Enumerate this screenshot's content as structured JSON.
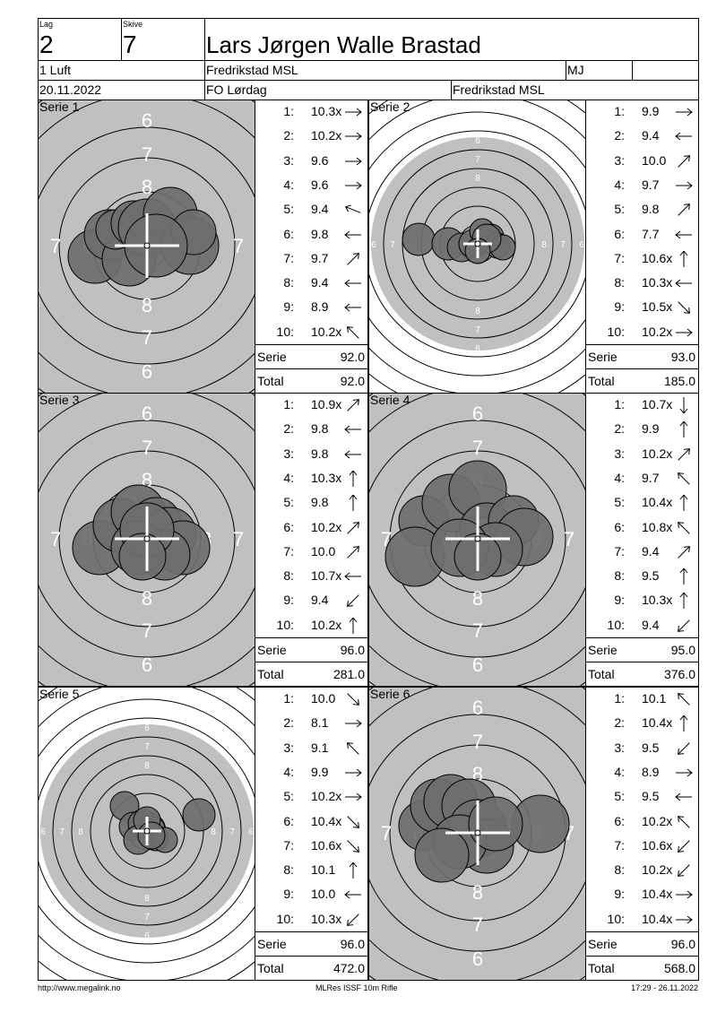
{
  "header": {
    "lag_label": "Lag",
    "lag_value": "2",
    "skive_label": "Skive",
    "skive_value": "7",
    "name": "Lars Jørgen Walle Brastad",
    "class": "1 Luft",
    "club": "Fredrikstad MSL",
    "initials": "MJ",
    "date": "20.11.2022",
    "event": "FO Lørdag",
    "organizer": "Fredrikstad MSL"
  },
  "labels": {
    "serie": "Serie",
    "total": "Total"
  },
  "series": [
    {
      "title": "Serie 1",
      "layout": "zoomA",
      "shots": [
        {
          "n": "1:",
          "v": "10.3x",
          "a": "e"
        },
        {
          "n": "2:",
          "v": "10.2x",
          "a": "e"
        },
        {
          "n": "3:",
          "v": "9.6",
          "a": "e"
        },
        {
          "n": "4:",
          "v": "9.6",
          "a": "e"
        },
        {
          "n": "5:",
          "v": "9.4",
          "a": "wnw"
        },
        {
          "n": "6:",
          "v": "9.8",
          "a": "w"
        },
        {
          "n": "7:",
          "v": "9.7",
          "a": "ne"
        },
        {
          "n": "8:",
          "v": "9.4",
          "a": "w"
        },
        {
          "n": "9:",
          "v": "8.9",
          "a": "w"
        },
        {
          "n": "10:",
          "v": "10.2x",
          "a": "nw"
        }
      ],
      "serie": "92.0",
      "total": "92.0"
    },
    {
      "title": "Serie 2",
      "layout": "full",
      "shots": [
        {
          "n": "1:",
          "v": "9.9",
          "a": "e"
        },
        {
          "n": "2:",
          "v": "9.4",
          "a": "w"
        },
        {
          "n": "3:",
          "v": "10.0",
          "a": "ne"
        },
        {
          "n": "4:",
          "v": "9.7",
          "a": "e"
        },
        {
          "n": "5:",
          "v": "9.8",
          "a": "ne"
        },
        {
          "n": "6:",
          "v": "7.7",
          "a": "w"
        },
        {
          "n": "7:",
          "v": "10.6x",
          "a": "n"
        },
        {
          "n": "8:",
          "v": "10.3x",
          "a": "w"
        },
        {
          "n": "9:",
          "v": "10.5x",
          "a": "se"
        },
        {
          "n": "10:",
          "v": "10.2x",
          "a": "e"
        }
      ],
      "serie": "93.0",
      "total": "185.0"
    },
    {
      "title": "Serie 3",
      "layout": "zoomA",
      "shots": [
        {
          "n": "1:",
          "v": "10.9x",
          "a": "ne"
        },
        {
          "n": "2:",
          "v": "9.8",
          "a": "w"
        },
        {
          "n": "3:",
          "v": "9.8",
          "a": "w"
        },
        {
          "n": "4:",
          "v": "10.3x",
          "a": "n"
        },
        {
          "n": "5:",
          "v": "9.8",
          "a": "n"
        },
        {
          "n": "6:",
          "v": "10.2x",
          "a": "ne"
        },
        {
          "n": "7:",
          "v": "10.0",
          "a": "ne"
        },
        {
          "n": "8:",
          "v": "10.7x",
          "a": "w"
        },
        {
          "n": "9:",
          "v": "9.4",
          "a": "sw"
        },
        {
          "n": "10:",
          "v": "10.2x",
          "a": "n"
        }
      ],
      "serie": "96.0",
      "total": "281.0"
    },
    {
      "title": "Serie 4",
      "layout": "zoomB",
      "shots": [
        {
          "n": "1:",
          "v": "10.7x",
          "a": "s"
        },
        {
          "n": "2:",
          "v": "9.9",
          "a": "n"
        },
        {
          "n": "3:",
          "v": "10.2x",
          "a": "ne"
        },
        {
          "n": "4:",
          "v": "9.7",
          "a": "nw"
        },
        {
          "n": "5:",
          "v": "10.4x",
          "a": "n"
        },
        {
          "n": "6:",
          "v": "10.8x",
          "a": "nw"
        },
        {
          "n": "7:",
          "v": "9.4",
          "a": "ne"
        },
        {
          "n": "8:",
          "v": "9.5",
          "a": "n"
        },
        {
          "n": "9:",
          "v": "10.3x",
          "a": "n"
        },
        {
          "n": "10:",
          "v": "9.4",
          "a": "sw"
        }
      ],
      "serie": "95.0",
      "total": "376.0"
    },
    {
      "title": "Serie 5",
      "layout": "full",
      "shots": [
        {
          "n": "1:",
          "v": "10.0",
          "a": "se"
        },
        {
          "n": "2:",
          "v": "8.1",
          "a": "e"
        },
        {
          "n": "3:",
          "v": "9.1",
          "a": "nw"
        },
        {
          "n": "4:",
          "v": "9.9",
          "a": "e"
        },
        {
          "n": "5:",
          "v": "10.2x",
          "a": "e"
        },
        {
          "n": "6:",
          "v": "10.4x",
          "a": "se"
        },
        {
          "n": "7:",
          "v": "10.6x",
          "a": "se"
        },
        {
          "n": "8:",
          "v": "10.1",
          "a": "n"
        },
        {
          "n": "9:",
          "v": "10.0",
          "a": "w"
        },
        {
          "n": "10:",
          "v": "10.3x",
          "a": "sw"
        }
      ],
      "serie": "96.0",
      "total": "472.0"
    },
    {
      "title": "Serie 6",
      "layout": "zoomB",
      "shots": [
        {
          "n": "1:",
          "v": "10.1",
          "a": "nw"
        },
        {
          "n": "2:",
          "v": "10.4x",
          "a": "n"
        },
        {
          "n": "3:",
          "v": "9.5",
          "a": "sw"
        },
        {
          "n": "4:",
          "v": "8.9",
          "a": "e"
        },
        {
          "n": "5:",
          "v": "9.5",
          "a": "w"
        },
        {
          "n": "6:",
          "v": "10.2x",
          "a": "nw"
        },
        {
          "n": "7:",
          "v": "10.6x",
          "a": "sw"
        },
        {
          "n": "8:",
          "v": "10.2x",
          "a": "sw"
        },
        {
          "n": "9:",
          "v": "10.4x",
          "a": "e"
        },
        {
          "n": "10:",
          "v": "10.4x",
          "a": "e"
        }
      ],
      "serie": "96.0",
      "total": "568.0"
    }
  ],
  "footer": {
    "left": "http://www.megalink.no",
    "center": "MLRes ISSF 10m Rifle",
    "right": "17:29 - 26.11.2022"
  }
}
